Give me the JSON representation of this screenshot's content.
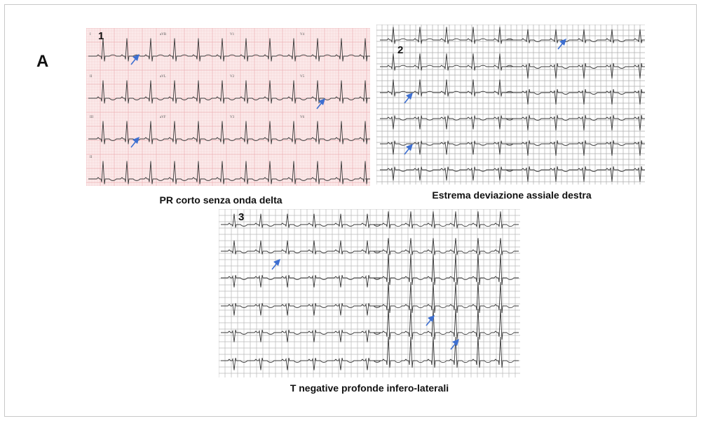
{
  "figure_label": "A",
  "panels": [
    {
      "number": "1",
      "caption": "PR corto senza onda delta",
      "paper_color": "#fbeaea",
      "grid_color": "#eaa3a8",
      "lead_labels": [
        "I",
        "aVR",
        "V1",
        "V4",
        "II",
        "aVL",
        "V2",
        "V5",
        "III",
        "aVF",
        "V3",
        "V6",
        "II"
      ]
    },
    {
      "number": "2",
      "caption": "Estrema deviazione assiale destra",
      "paper_color": "#ffffff",
      "grid_color": "#9a9a9a"
    },
    {
      "number": "3",
      "caption": "T negative profonde infero-laterali",
      "paper_color": "#ffffff",
      "grid_color": "#a8a8a8"
    }
  ],
  "arrow_color": "#3d6fd1",
  "trace_color": "#3a3a3a"
}
